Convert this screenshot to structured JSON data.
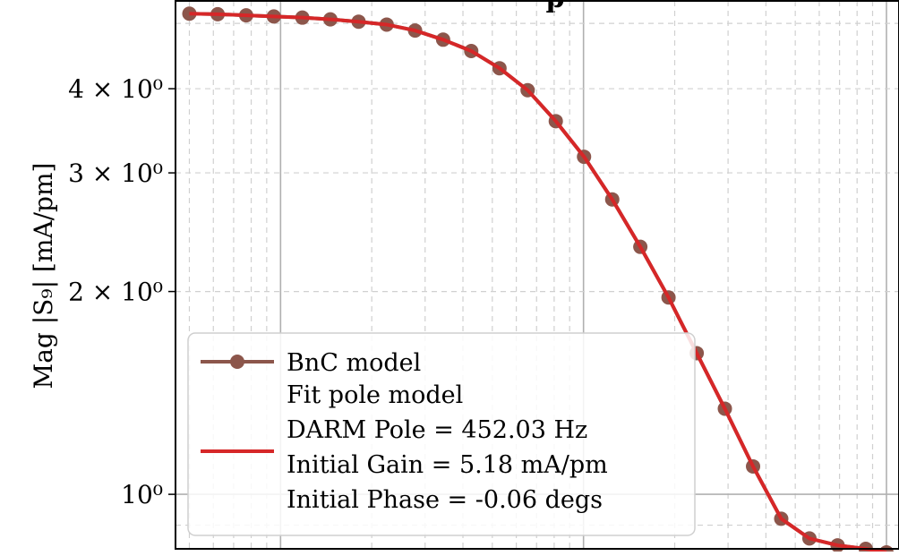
{
  "chart_data": {
    "type": "line",
    "title_visible_fragment": "p",
    "ylabel": "Mag |S₉| [mA/pm]",
    "xlabel": "",
    "yscale": "log",
    "xscale": "log",
    "ylim": [
      0.83,
      5.4
    ],
    "xlim": [
      4.5,
      1100
    ],
    "grid": true,
    "y_tick_labels": [
      {
        "value": 4,
        "label": "4 × 10⁰"
      },
      {
        "value": 3,
        "label": "3 × 10⁰"
      },
      {
        "value": 2,
        "label": "2 × 10⁰"
      },
      {
        "value": 1,
        "label": "10⁰"
      }
    ],
    "legend_position": "lower-left",
    "legend": [
      {
        "label": "BnC model",
        "color": "#8c564b",
        "marker": "circle"
      },
      {
        "label": "Fit pole model",
        "color": "#d62728",
        "marker": "none"
      },
      {
        "label": "DARM Pole = 452.03 Hz",
        "color": "",
        "marker": "none"
      },
      {
        "label": "Initial Gain = 5.18 mA/pm",
        "color": "",
        "marker": "none"
      },
      {
        "label": "Initial Phase = -0.06 degs",
        "color": "",
        "marker": "none"
      }
    ],
    "series": [
      {
        "name": "BnC model",
        "color": "#8c564b",
        "style": "line-markers",
        "x": [
          5,
          6.2,
          7.7,
          9.5,
          11.8,
          14.6,
          18.1,
          22.4,
          27.8,
          34.4,
          42.6,
          52.8,
          65.4,
          81,
          100.4,
          124.4,
          154,
          190.8,
          236.4,
          292.8,
          362.8,
          449.4,
          556.8,
          689.8,
          854.4,
          1000
        ],
        "y": [
          5.17,
          5.16,
          5.14,
          5.12,
          5.1,
          5.07,
          5.03,
          4.98,
          4.88,
          4.73,
          4.55,
          4.29,
          3.98,
          3.58,
          3.17,
          2.74,
          2.33,
          1.96,
          1.62,
          1.34,
          1.1,
          0.92,
          0.86,
          0.84,
          0.83,
          0.82
        ]
      },
      {
        "name": "Fit pole model",
        "color": "#d62728",
        "style": "line",
        "x": [
          5,
          6.2,
          7.7,
          9.5,
          11.8,
          14.6,
          18.1,
          22.4,
          27.8,
          34.4,
          42.6,
          52.8,
          65.4,
          81,
          100.4,
          124.4,
          154,
          190.8,
          236.4,
          292.8,
          362.8,
          449.4,
          556.8,
          689.8,
          854.4,
          1000
        ],
        "y": [
          5.17,
          5.16,
          5.14,
          5.12,
          5.1,
          5.07,
          5.03,
          4.98,
          4.88,
          4.73,
          4.55,
          4.29,
          3.98,
          3.58,
          3.17,
          2.74,
          2.33,
          1.96,
          1.62,
          1.34,
          1.1,
          0.92,
          0.86,
          0.84,
          0.83,
          0.82
        ]
      }
    ]
  }
}
